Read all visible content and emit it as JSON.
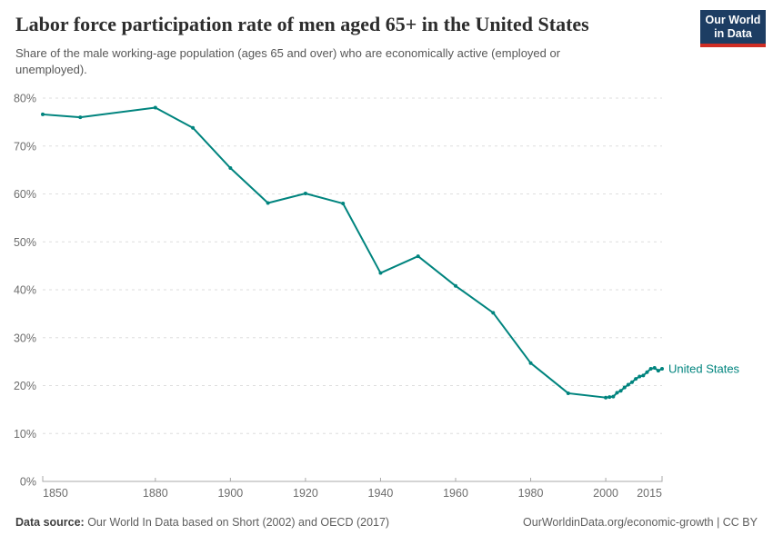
{
  "header": {
    "title": "Labor force participation rate of men aged 65+ in the United States",
    "subtitle": "Share of the male working-age population (ages 65 and over) who are economically active (employed or unemployed).",
    "logo": {
      "line1": "Our World",
      "line2": "in Data",
      "bg_color": "#1d3d63",
      "accent_color": "#cf2d24"
    }
  },
  "chart_data": {
    "type": "line",
    "title": "Labor force participation rate of men aged 65+ in the United States",
    "xlabel": "",
    "ylabel": "",
    "xlim": [
      1850,
      2015
    ],
    "ylim": [
      0,
      80
    ],
    "xticks": [
      1850,
      1880,
      1900,
      1920,
      1940,
      1960,
      1980,
      2000,
      2015
    ],
    "yticks": [
      0,
      10,
      20,
      30,
      40,
      50,
      60,
      70,
      80
    ],
    "ytick_suffix": "%",
    "grid": "horizontal-dashed",
    "grid_color": "#dedede",
    "axis_color": "#a8a8a8",
    "tick_label_color": "#6d6d6d",
    "legend": "end-of-line-label",
    "series": [
      {
        "name": "United States",
        "color": "#00847e",
        "points": [
          [
            1850,
            76.6
          ],
          [
            1860,
            76.0
          ],
          [
            1880,
            78.0
          ],
          [
            1890,
            73.8
          ],
          [
            1900,
            65.4
          ],
          [
            1910,
            58.1
          ],
          [
            1920,
            60.1
          ],
          [
            1930,
            58.0
          ],
          [
            1940,
            43.5
          ],
          [
            1950,
            47.0
          ],
          [
            1960,
            40.8
          ],
          [
            1970,
            35.2
          ],
          [
            1980,
            24.7
          ],
          [
            1990,
            18.4
          ],
          [
            2000,
            17.5
          ],
          [
            2001,
            17.6
          ],
          [
            2002,
            17.7
          ],
          [
            2003,
            18.5
          ],
          [
            2004,
            18.9
          ],
          [
            2005,
            19.6
          ],
          [
            2006,
            20.2
          ],
          [
            2007,
            20.7
          ],
          [
            2008,
            21.4
          ],
          [
            2009,
            21.9
          ],
          [
            2010,
            22.1
          ],
          [
            2011,
            22.8
          ],
          [
            2012,
            23.5
          ],
          [
            2013,
            23.7
          ],
          [
            2014,
            23.1
          ],
          [
            2015,
            23.5
          ]
        ]
      }
    ]
  },
  "footer": {
    "source_label": "Data source:",
    "source_text": " Our World In Data based on Short (2002) and OECD (2017)",
    "attribution": "OurWorldinData.org/economic-growth | CC BY"
  }
}
